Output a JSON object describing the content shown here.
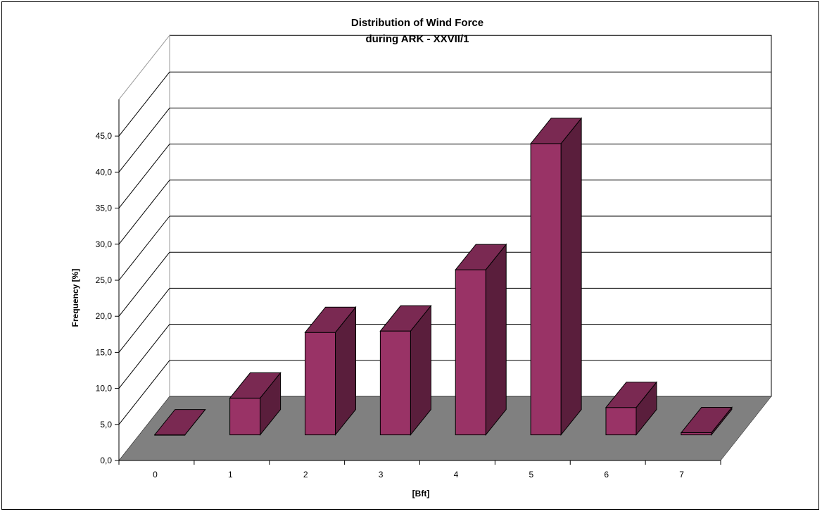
{
  "chart_data": {
    "type": "bar",
    "title": "Distribution of Wind Force",
    "subtitle": "during ARK - XXVII/1",
    "xlabel": "[Bft]",
    "ylabel": "Frequency [%]",
    "categories": [
      "0",
      "1",
      "2",
      "3",
      "4",
      "5",
      "6",
      "7"
    ],
    "values": [
      0.0,
      5.1,
      14.2,
      14.4,
      22.9,
      40.4,
      3.8,
      0.3
    ],
    "ylim": [
      0,
      45
    ],
    "yticks": [
      "0,0",
      "5,0",
      "10,0",
      "15,0",
      "20,0",
      "25,0",
      "30,0",
      "35,0",
      "40,0",
      "45,0"
    ],
    "grid": true,
    "legend": "none",
    "colors": {
      "bar_front": "#993366",
      "bar_top": "#7a2952",
      "bar_side": "#5a1e3c",
      "floor": "#808080",
      "wall": "#ffffff",
      "gridline": "#000000"
    }
  }
}
